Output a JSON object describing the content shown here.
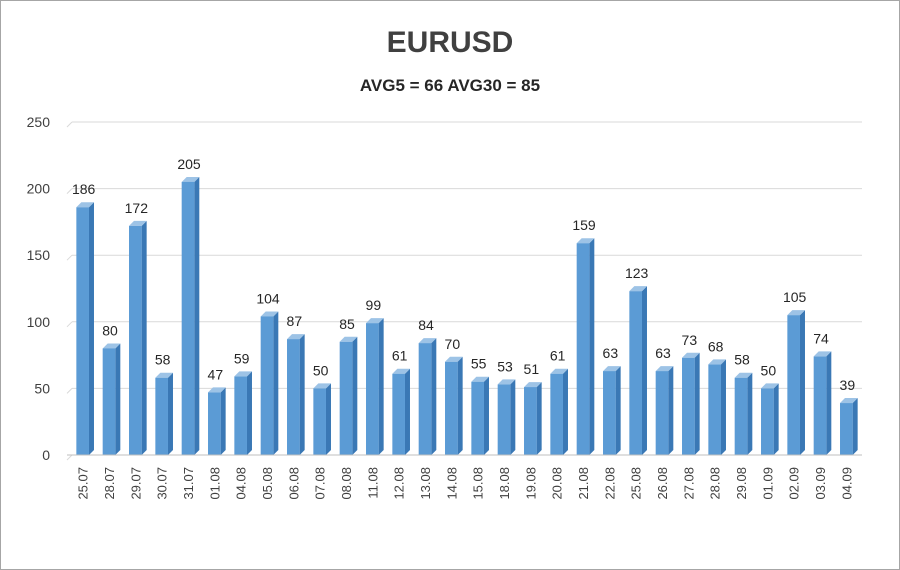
{
  "chart_data": {
    "type": "bar",
    "title": "EURUSD",
    "subtitle": "AVG5 = 66 AVG30 = 85",
    "categories": [
      "25.07",
      "28.07",
      "29.07",
      "30.07",
      "31.07",
      "01.08",
      "04.08",
      "05.08",
      "06.08",
      "07.08",
      "08.08",
      "11.08",
      "12.08",
      "13.08",
      "14.08",
      "15.08",
      "18.08",
      "19.08",
      "20.08",
      "21.08",
      "22.08",
      "25.08",
      "26.08",
      "27.08",
      "28.08",
      "29.08",
      "01.09",
      "02.09",
      "03.09",
      "04.09"
    ],
    "values": [
      186,
      80,
      172,
      58,
      205,
      47,
      59,
      104,
      87,
      50,
      85,
      99,
      61,
      84,
      70,
      55,
      53,
      51,
      61,
      159,
      63,
      123,
      63,
      73,
      68,
      58,
      50,
      105,
      74,
      39
    ],
    "ylim": [
      0,
      250
    ],
    "yticks": [
      0,
      50,
      100,
      150,
      200,
      250
    ],
    "grid": true,
    "legend": "none",
    "bar_color": "#5b9bd5",
    "bar_side_color": "#3a78b5",
    "bar_top_color": "#9dc3e6"
  }
}
